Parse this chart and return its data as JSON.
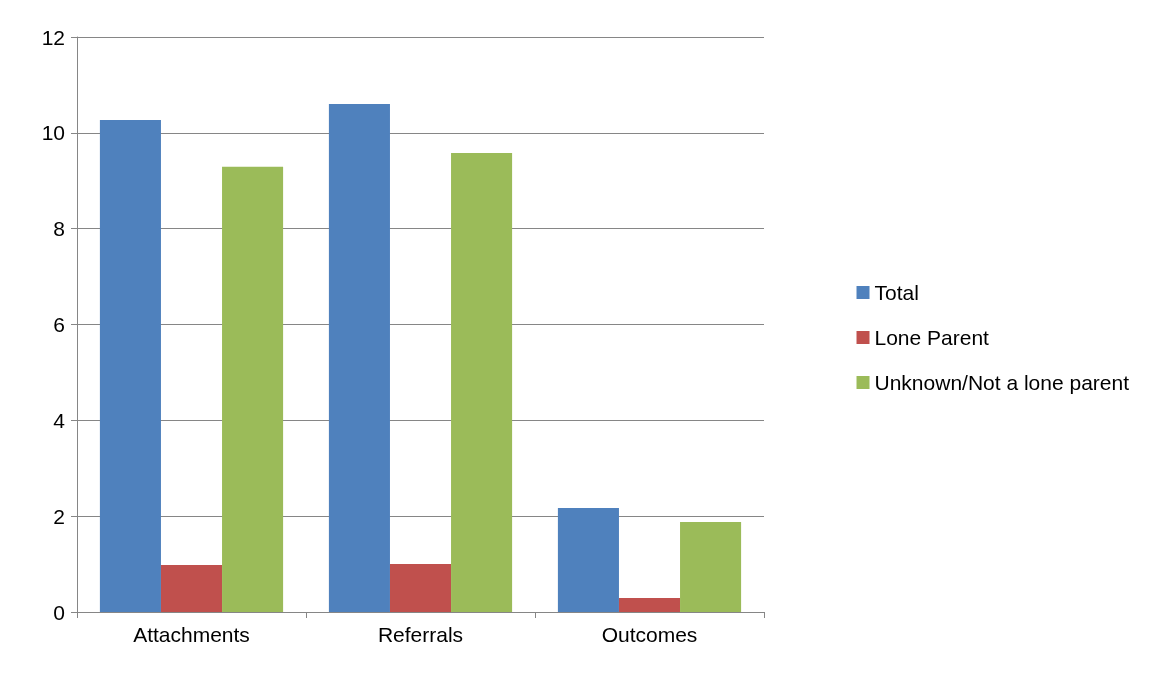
{
  "chart_data": {
    "type": "bar",
    "categories": [
      "Attachments",
      "Referrals",
      "Outcomes"
    ],
    "series": [
      {
        "name": "Total",
        "color": "#4f81bd",
        "values": [
          10.27,
          10.6,
          2.17
        ]
      },
      {
        "name": "Lone Parent",
        "color": "#c0504d",
        "values": [
          0.98,
          1.0,
          0.29
        ]
      },
      {
        "name": "Unknown/Not a lone parent",
        "color": "#9bbb59",
        "values": [
          9.29,
          9.58,
          1.88
        ]
      }
    ],
    "ylim": [
      0,
      12
    ],
    "yticks": [
      0,
      2,
      4,
      6,
      8,
      10,
      12
    ],
    "grid": "y",
    "legend": "right"
  }
}
